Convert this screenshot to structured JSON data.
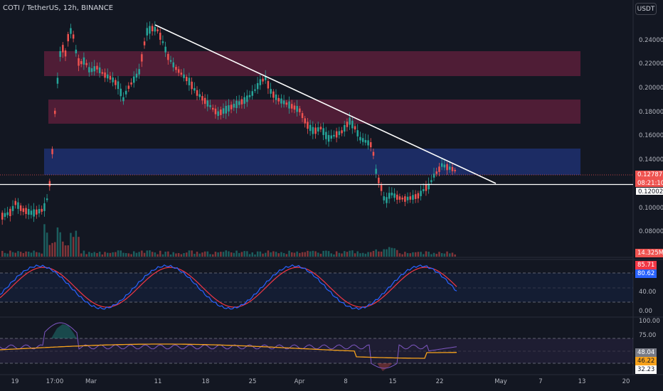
{
  "header": {
    "symbol": "COTI / TetherUS, 12h, BINANCE",
    "currency_button": "USDT"
  },
  "price_axis": {
    "labels": [
      "0.24000",
      "0.22000",
      "0.20000",
      "0.18000",
      "0.16000",
      "0.14000",
      "0.10000",
      "0.08000"
    ],
    "last_price": "0.12787",
    "countdown": "08:21:10",
    "horizontal_line_price": "0.12002",
    "volume_tag": "14.325M"
  },
  "stoch_rsi": {
    "k_value": "85.71",
    "d_value": "80.62",
    "labels": [
      "40.00",
      "0.00"
    ]
  },
  "rsi": {
    "labels": [
      "100.00",
      "75.00"
    ],
    "rsi_value": "48.04",
    "ma_value": "46.22",
    "lower_value": "32.23"
  },
  "time_axis": {
    "labels": [
      "19",
      "17:00",
      "Mar",
      "11",
      "18",
      "25",
      "Apr",
      "8",
      "15",
      "22",
      "May",
      "7",
      "13",
      "20"
    ]
  },
  "colors": {
    "background": "#131722",
    "bull": "#26a69a",
    "bear": "#ef5350",
    "resistance_zone": "#5a1f3a",
    "support_zone": "#1e2f6b",
    "trendline": "#ffffff",
    "stoch_k": "#2962ff",
    "stoch_d": "#f23645",
    "rsi_line": "#7e57c2",
    "rsi_ma": "#f7a21b"
  }
}
